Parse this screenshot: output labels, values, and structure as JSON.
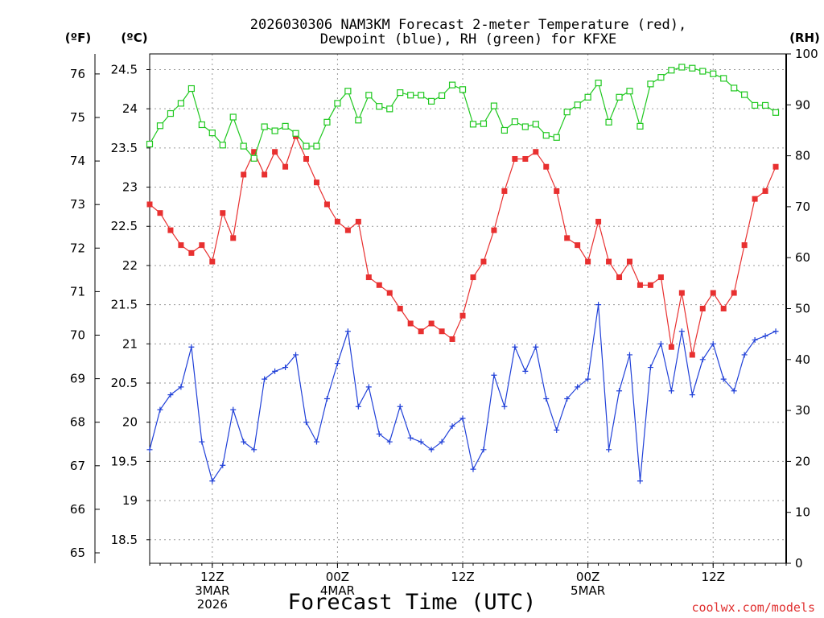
{
  "chart_data": {
    "type": "line",
    "title_lines": [
      "2026030306 NAM3KM Forecast 2-meter Temperature (red),",
      "Dewpoint (blue), RH (green) for KFXE"
    ],
    "xlabel": "Forecast Time (UTC)",
    "credit": "coolwx.com/models",
    "units": {
      "fahrenheit": "(ºF)",
      "celsius": "(ºC)",
      "rh": "(RH)"
    },
    "x_hours_range": [
      0,
      61
    ],
    "x_ticks": [
      {
        "hour": 6,
        "lines": [
          "12Z",
          "3MAR",
          "2026"
        ]
      },
      {
        "hour": 18,
        "lines": [
          "00Z",
          "4MAR"
        ]
      },
      {
        "hour": 30,
        "lines": [
          "12Z"
        ]
      },
      {
        "hour": 42,
        "lines": [
          "00Z",
          "5MAR"
        ]
      },
      {
        "hour": 54,
        "lines": [
          "12Z"
        ]
      }
    ],
    "celsius_range": [
      18.2,
      24.7
    ],
    "celsius_ticks": [
      "18.5",
      "19",
      "19.5",
      "20",
      "20.5",
      "21",
      "21.5",
      "22",
      "22.5",
      "23",
      "23.5",
      "24",
      "24.5"
    ],
    "fahrenheit_ticks": [
      "65",
      "66",
      "67",
      "68",
      "69",
      "70",
      "71",
      "72",
      "73",
      "74",
      "75",
      "76"
    ],
    "rh_range": [
      0,
      100
    ],
    "rh_ticks": [
      "0",
      "10",
      "20",
      "30",
      "40",
      "50",
      "60",
      "70",
      "80",
      "90",
      "100"
    ],
    "series": [
      {
        "name": "2-meter Temperature",
        "axis": "celsius",
        "color": "#e83030",
        "marker": "filled-square",
        "values": [
          22.78,
          22.67,
          22.45,
          22.26,
          22.16,
          22.26,
          22.05,
          22.67,
          22.35,
          23.16,
          23.45,
          23.16,
          23.45,
          23.26,
          23.65,
          23.36,
          23.06,
          22.78,
          22.56,
          22.45,
          22.56,
          21.85,
          21.75,
          21.65,
          21.45,
          21.26,
          21.16,
          21.26,
          21.16,
          21.06,
          21.36,
          21.85,
          22.05,
          22.45,
          22.95,
          23.36,
          23.36,
          23.45,
          23.26,
          22.95,
          22.35,
          22.26,
          22.05,
          22.56,
          22.05,
          21.85,
          22.05,
          21.75,
          21.75,
          21.85,
          20.96,
          21.65,
          20.86,
          21.45,
          21.65,
          21.45,
          21.65,
          22.26,
          22.85,
          22.95,
          23.26
        ]
      },
      {
        "name": "Dewpoint",
        "axis": "celsius",
        "color": "#2040d8",
        "marker": "plus",
        "values": [
          19.65,
          20.16,
          20.35,
          20.45,
          20.96,
          19.75,
          19.25,
          19.45,
          20.16,
          19.75,
          19.65,
          20.55,
          20.65,
          20.7,
          20.86,
          20.0,
          19.75,
          20.3,
          20.75,
          21.16,
          20.2,
          20.45,
          19.85,
          19.75,
          20.2,
          19.8,
          19.75,
          19.65,
          19.75,
          19.95,
          20.05,
          19.4,
          19.65,
          20.6,
          20.2,
          20.96,
          20.65,
          20.96,
          20.3,
          19.9,
          20.3,
          20.45,
          20.55,
          21.5,
          19.65,
          20.4,
          20.86,
          19.25,
          20.7,
          21.0,
          20.4,
          21.16,
          20.35,
          20.8,
          21.0,
          20.55,
          20.4,
          20.86,
          21.05,
          21.1,
          21.16
        ]
      },
      {
        "name": "Relative Humidity",
        "axis": "rh",
        "color": "#20c820",
        "marker": "open-square",
        "values": [
          82.3,
          85.9,
          88.3,
          90.3,
          93.2,
          86.1,
          84.5,
          82.1,
          87.6,
          81.9,
          79.5,
          85.7,
          84.9,
          85.8,
          84.4,
          81.9,
          81.9,
          86.6,
          90.3,
          92.7,
          87.0,
          91.9,
          89.7,
          89.2,
          92.4,
          91.9,
          91.9,
          90.7,
          91.8,
          93.9,
          93.0,
          86.2,
          86.3,
          89.8,
          85.0,
          86.7,
          85.7,
          86.2,
          84.0,
          83.6,
          88.6,
          90.0,
          91.5,
          94.3,
          86.6,
          91.5,
          92.7,
          85.8,
          94.1,
          95.4,
          96.8,
          97.4,
          97.2,
          96.6,
          96.1,
          95.2,
          93.3,
          92.0,
          89.9,
          89.9,
          88.5
        ]
      }
    ],
    "grid": true
  }
}
